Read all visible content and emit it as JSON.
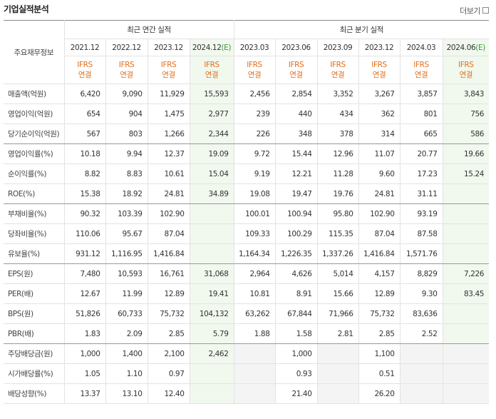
{
  "header": {
    "title": "기업실적분석",
    "more": "더보기"
  },
  "table": {
    "corner": "주요재무정보",
    "groups": [
      "최근 연간 실적",
      "최근 분기 실적"
    ],
    "columns": [
      {
        "period": "2021.12",
        "basis": [
          "IFRS",
          "연결"
        ]
      },
      {
        "period": "2022.12",
        "basis": [
          "IFRS",
          "연결"
        ]
      },
      {
        "period": "2023.12",
        "basis": [
          "IFRS",
          "연결"
        ]
      },
      {
        "period": "2024.12",
        "estimate": "(E)",
        "basis": [
          "IFRS",
          "연결"
        ]
      },
      {
        "period": "2023.03",
        "basis": [
          "IFRS",
          "연결"
        ]
      },
      {
        "period": "2023.06",
        "basis": [
          "IFRS",
          "연결"
        ]
      },
      {
        "period": "2023.09",
        "basis": [
          "IFRS",
          "연결"
        ]
      },
      {
        "period": "2023.12",
        "basis": [
          "IFRS",
          "연결"
        ]
      },
      {
        "period": "2024.03",
        "basis": [
          "IFRS",
          "연결"
        ]
      },
      {
        "period": "2024.06",
        "estimate": "(E)",
        "basis": [
          "IFRS",
          "연결"
        ]
      }
    ],
    "rows": [
      {
        "label": "매출액(억원)",
        "values": [
          "6,420",
          "9,090",
          "11,929",
          "15,593",
          "2,456",
          "2,854",
          "3,352",
          "3,267",
          "3,857",
          "3,843"
        ]
      },
      {
        "label": "영업이익(억원)",
        "values": [
          "654",
          "904",
          "1,475",
          "2,977",
          "239",
          "440",
          "434",
          "362",
          "801",
          "756"
        ]
      },
      {
        "label": "당기순이익(억원)",
        "values": [
          "567",
          "803",
          "1,266",
          "2,344",
          "226",
          "348",
          "378",
          "314",
          "665",
          "586"
        ]
      },
      {
        "label": "영업이익률(%)",
        "values": [
          "10.18",
          "9.94",
          "12.37",
          "19.09",
          "9.72",
          "15.44",
          "12.96",
          "11.07",
          "20.77",
          "19.66"
        ]
      },
      {
        "label": "순이익률(%)",
        "values": [
          "8.82",
          "8.83",
          "10.61",
          "15.04",
          "9.19",
          "12.21",
          "11.28",
          "9.60",
          "17.23",
          "15.24"
        ]
      },
      {
        "label": "ROE(%)",
        "values": [
          "15.38",
          "18.92",
          "24.81",
          "34.89",
          "19.08",
          "19.47",
          "19.76",
          "24.81",
          "31.11",
          null
        ]
      },
      {
        "label": "부채비율(%)",
        "values": [
          "90.32",
          "103.39",
          "102.90",
          null,
          "100.01",
          "100.94",
          "95.80",
          "102.90",
          "93.19",
          null
        ]
      },
      {
        "label": "당좌비율(%)",
        "values": [
          "110.06",
          "95.67",
          "87.04",
          null,
          "109.33",
          "100.29",
          "115.35",
          "87.04",
          "87.58",
          null
        ]
      },
      {
        "label": "유보율(%)",
        "values": [
          "931.12",
          "1,116.95",
          "1,416.84",
          null,
          "1,164.34",
          "1,226.35",
          "1,337.26",
          "1,416.84",
          "1,571.76",
          null
        ]
      },
      {
        "label": "EPS(원)",
        "values": [
          "7,480",
          "10,593",
          "16,761",
          "31,068",
          "2,964",
          "4,626",
          "5,014",
          "4,157",
          "8,829",
          "7,226"
        ]
      },
      {
        "label": "PER(배)",
        "values": [
          "12.67",
          "11.99",
          "12.89",
          "19.41",
          "10.81",
          "8.91",
          "15.66",
          "12.89",
          "9.30",
          "83.45"
        ]
      },
      {
        "label": "BPS(원)",
        "values": [
          "51,826",
          "60,733",
          "75,732",
          "104,132",
          "63,262",
          "67,844",
          "71,966",
          "75,732",
          "83,636",
          null
        ]
      },
      {
        "label": "PBR(배)",
        "values": [
          "1.83",
          "2.09",
          "2.85",
          "5.79",
          "1.88",
          "1.58",
          "2.81",
          "2.85",
          "2.52",
          null
        ]
      },
      {
        "label": "주당배당금(원)",
        "values": [
          "1,000",
          "1,400",
          "2,100",
          "2,462",
          null,
          "1,000",
          null,
          "1,100",
          null,
          null
        ]
      },
      {
        "label": "시가배당률(%)",
        "values": [
          "1.05",
          "1.10",
          "0.97",
          null,
          null,
          "0.93",
          null,
          "0.51",
          null,
          null
        ]
      },
      {
        "label": "배당성향(%)",
        "values": [
          "13.37",
          "13.10",
          "12.40",
          null,
          null,
          "21.40",
          null,
          "26.20",
          null,
          null
        ]
      }
    ]
  }
}
